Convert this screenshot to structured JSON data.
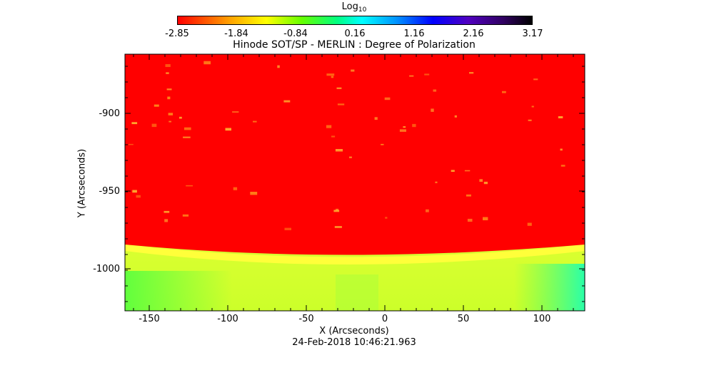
{
  "colorbar": {
    "title_base": "Log",
    "title_sub": "10",
    "tick_labels": [
      "-2.85",
      "-1.84",
      "-0.84",
      "0.16",
      "1.16",
      "2.16",
      "3.17"
    ]
  },
  "plot": {
    "title": "Hinode SOT/SP - MERLIN : Degree of Polarization",
    "xlabel": "X (Arcseconds)",
    "ylabel": "Y (Arcseconds)",
    "x_tick_labels": [
      "-150",
      "-100",
      "-50",
      "0",
      "50",
      "100"
    ],
    "y_tick_labels": [
      "-900",
      "-950",
      "-1000"
    ],
    "timestamp": "24-Feb-2018 10:46:21.963"
  },
  "colors": {
    "disk": "#ff0000",
    "limb": "#ffff44",
    "off_limb": "#d7ff2f",
    "frame": "#000000"
  }
}
